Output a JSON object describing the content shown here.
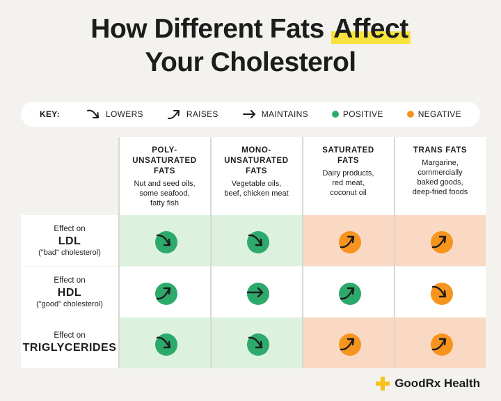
{
  "title": {
    "line1_pre": "How Different Fats ",
    "line1_hl": "Affect",
    "line2": "Your Cholesterol"
  },
  "key": {
    "label": "KEY:",
    "lowers": "LOWERS",
    "raises": "RAISES",
    "maintains": "MAINTAINS",
    "positive": "POSITIVE",
    "negative": "NEGATIVE"
  },
  "colors": {
    "positive": "#2daa6b",
    "negative": "#f7941d",
    "positive_bg": "#dcf2df",
    "negative_bg": "#fad9c4",
    "highlight": "#f8e33c"
  },
  "columns": [
    {
      "name": "POLY-\nUNSATURATED\nFATS",
      "desc": "Nut and seed oils,\nsome seafood,\nfatty fish"
    },
    {
      "name": "MONO-\nUNSATURATED\nFATS",
      "desc": "Vegetable oils,\nbeef, chicken meat"
    },
    {
      "name": "SATURATED\nFATS",
      "desc": "Dairy products,\nred meat,\ncoconut oil"
    },
    {
      "name": "TRANS FATS",
      "desc": "Margarine,\ncommercially\nbaked goods,\ndeep-fried foods"
    }
  ],
  "rows": [
    {
      "effect": "Effect on",
      "name": "LDL",
      "sub": "(\"bad\" cholesterol)",
      "cells": [
        {
          "dir": "lowers",
          "tone": "positive"
        },
        {
          "dir": "lowers",
          "tone": "positive"
        },
        {
          "dir": "raises",
          "tone": "negative"
        },
        {
          "dir": "raises",
          "tone": "negative"
        }
      ]
    },
    {
      "effect": "Effect on",
      "name": "HDL",
      "sub": "(\"good\" cholesterol)",
      "cells": [
        {
          "dir": "raises",
          "tone": "positive"
        },
        {
          "dir": "maintains",
          "tone": "positive"
        },
        {
          "dir": "raises",
          "tone": "positive"
        },
        {
          "dir": "lowers",
          "tone": "negative"
        }
      ]
    },
    {
      "effect": "Effect on",
      "name": "TRIGLYCERIDES",
      "sub": "",
      "cells": [
        {
          "dir": "lowers",
          "tone": "positive"
        },
        {
          "dir": "lowers",
          "tone": "positive"
        },
        {
          "dir": "raises",
          "tone": "negative"
        },
        {
          "dir": "raises",
          "tone": "negative"
        }
      ]
    }
  ],
  "brand": {
    "name": "GoodRx Health",
    "logo_icon": "plus-icon",
    "logo_color": "#f8c21c"
  }
}
